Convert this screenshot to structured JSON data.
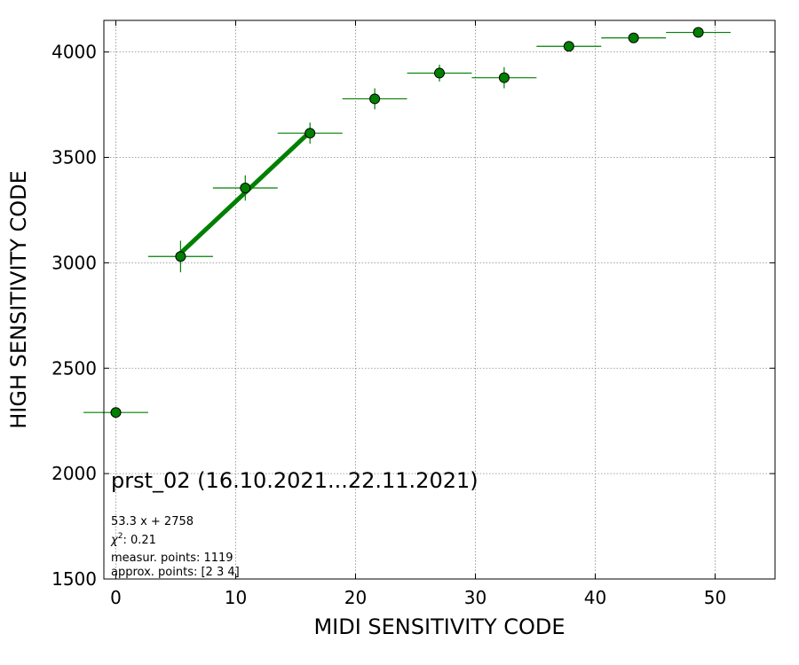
{
  "chart_data": {
    "type": "scatter",
    "title": "prst_02 (16.10.2021...22.11.2021)",
    "xlabel": "MIDI SENSITIVITY CODE",
    "ylabel": "HIGH SENSITIVITY CODE",
    "xlim": [
      -1,
      55
    ],
    "ylim": [
      1500,
      4150
    ],
    "xticks": [
      0,
      10,
      20,
      30,
      40,
      50
    ],
    "yticks": [
      1500,
      2000,
      2500,
      3000,
      3500,
      4000
    ],
    "grid": true,
    "colors": {
      "marker": "#008000",
      "errorbar": "#008000",
      "fit": "#008000",
      "edge": "#000000"
    },
    "series": [
      {
        "x": [
          0,
          5.4,
          10.8,
          16.2,
          21.6,
          27.0,
          32.4,
          37.8,
          43.2,
          48.6
        ],
        "y": [
          2290,
          3030,
          3355,
          3615,
          3778,
          3900,
          3878,
          4027,
          4067,
          4093
        ],
        "xerr": [
          2.7,
          2.7,
          2.7,
          2.7,
          2.7,
          2.7,
          2.7,
          2.7,
          2.7,
          2.7
        ],
        "yerr": [
          0,
          75,
          60,
          50,
          50,
          40,
          50,
          0,
          0,
          0
        ]
      }
    ],
    "fit": {
      "slope": 53.3,
      "intercept": 2758,
      "x_range": [
        5.4,
        16.2
      ]
    },
    "annotations": {
      "equation": "53.3 x + 2758",
      "chi2_label": "χ",
      "chi2_sup": "2",
      "chi2_value": ": 0.21",
      "measur_points": "measur. points: 1119",
      "approx_points": "approx. points: [2 3 4]"
    }
  }
}
